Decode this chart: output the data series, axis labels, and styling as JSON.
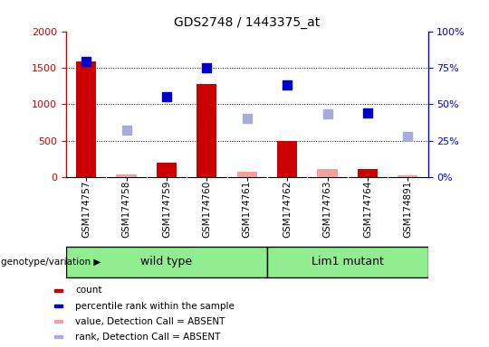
{
  "title": "GDS2748 / 1443375_at",
  "samples": [
    "GSM174757",
    "GSM174758",
    "GSM174759",
    "GSM174760",
    "GSM174761",
    "GSM174762",
    "GSM174763",
    "GSM174764",
    "GSM174891"
  ],
  "count_values": [
    1580,
    null,
    200,
    1270,
    null,
    500,
    null,
    110,
    null
  ],
  "count_absent_values": [
    null,
    30,
    null,
    null,
    70,
    null,
    110,
    null,
    20
  ],
  "rank_values": [
    79,
    null,
    55,
    75,
    null,
    63,
    null,
    44,
    null
  ],
  "rank_absent_values": [
    null,
    32,
    null,
    null,
    40,
    null,
    43,
    null,
    28
  ],
  "ylim_left": [
    0,
    2000
  ],
  "ylim_right": [
    0,
    100
  ],
  "y_ticks_left": [
    0,
    500,
    1000,
    1500,
    2000
  ],
  "y_ticks_right": [
    0,
    25,
    50,
    75,
    100
  ],
  "y_tick_labels_right": [
    "0%",
    "25%",
    "50%",
    "75%",
    "100%"
  ],
  "group1_label": "wild type",
  "group2_label": "Lim1 mutant",
  "group1_indices": [
    0,
    1,
    2,
    3,
    4
  ],
  "group2_indices": [
    5,
    6,
    7,
    8
  ],
  "color_count": "#cc0000",
  "color_count_absent": "#f4a0a0",
  "color_rank": "#0000cc",
  "color_rank_absent": "#aaaadd",
  "group1_bg": "#90ee90",
  "group2_bg": "#90ee90",
  "bar_width": 0.5,
  "dot_size": 50,
  "annotation_label": "genotype/variation",
  "legend_items": [
    {
      "label": "count",
      "color": "#cc0000"
    },
    {
      "label": "percentile rank within the sample",
      "color": "#0000cc"
    },
    {
      "label": "value, Detection Call = ABSENT",
      "color": "#f4a0a0"
    },
    {
      "label": "rank, Detection Call = ABSENT",
      "color": "#aaaadd"
    }
  ]
}
